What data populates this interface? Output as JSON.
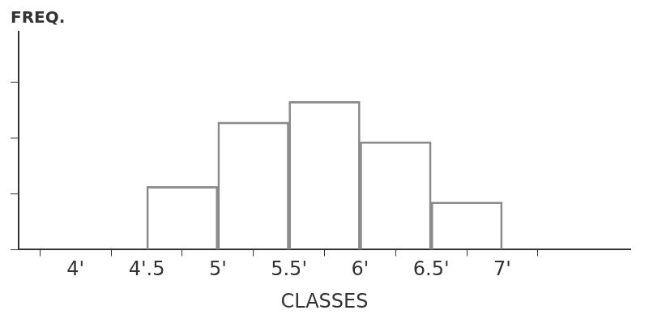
{
  "chart_data": {
    "type": "histogram",
    "y_label": "FREQ.",
    "x_label": "CLASSES",
    "bins": [
      4.5,
      5,
      5.5,
      6,
      6.5,
      7
    ],
    "values": [
      1.13,
      2.28,
      2.65,
      1.93,
      0.85
    ],
    "color": "#8a8a8a",
    "xlim": [
      3.6,
      7.9
    ],
    "xticks": [
      {
        "value": 4,
        "label": "4'"
      },
      {
        "value": 4.5,
        "label": "4'.5"
      },
      {
        "value": 5,
        "label": "5'"
      },
      {
        "value": 5.5,
        "label": "5.5'"
      },
      {
        "value": 6,
        "label": "6'"
      },
      {
        "value": 6.5,
        "label": "6.5'"
      },
      {
        "value": 7,
        "label": "7'"
      }
    ],
    "ylim": [
      0,
      3.9
    ],
    "yticks": [
      0,
      1,
      2,
      3
    ],
    "tick_labels": "x",
    "grid": false
  }
}
